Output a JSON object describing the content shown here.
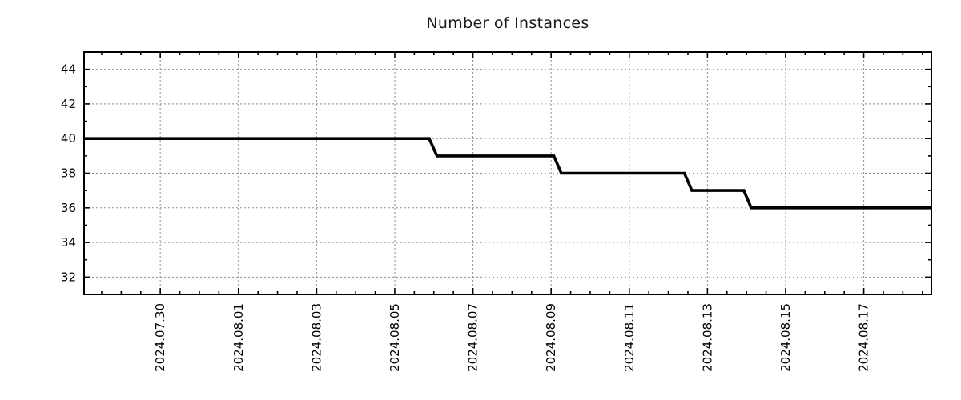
{
  "chart_data": {
    "type": "line",
    "title": "Number of Instances",
    "legend": null,
    "grid": {
      "visible": true,
      "style": "dashed",
      "color": "#8f8f8f"
    },
    "x_axis": {
      "label": "",
      "day0": "2024.07.28",
      "xlim_days": [
        0.05,
        21.73
      ],
      "tick_days": [
        2,
        4,
        6,
        8,
        10,
        12,
        14,
        16,
        18,
        20
      ],
      "tick_labels": [
        "2024.07.30",
        "2024.08.01",
        "2024.08.03",
        "2024.08.05",
        "2024.08.07",
        "2024.08.09",
        "2024.08.11",
        "2024.08.13",
        "2024.08.15",
        "2024.08.17"
      ],
      "minor_tick_interval_days": 0.5,
      "tick_label_rotation_deg": 90
    },
    "y_axis": {
      "label": "",
      "ylim": [
        31,
        45
      ],
      "ticks": [
        32,
        34,
        36,
        38,
        40,
        42,
        44
      ],
      "tick_labels": [
        "32",
        "34",
        "36",
        "38",
        "40",
        "42",
        "44"
      ],
      "minor_tick_interval": 1
    },
    "series": [
      {
        "name": "Number of Instances",
        "color": "#000000",
        "line_width": 3.6,
        "points_day_value": [
          [
            0.05,
            40
          ],
          [
            8.88,
            40
          ],
          [
            9.08,
            39
          ],
          [
            12.07,
            39
          ],
          [
            12.26,
            38
          ],
          [
            15.41,
            38
          ],
          [
            15.6,
            37
          ],
          [
            16.93,
            37
          ],
          [
            17.12,
            36
          ],
          [
            21.73,
            36
          ]
        ],
        "step_summary": [
          {
            "from": "2024.07.28",
            "to": "2024.08.06",
            "value": 40
          },
          {
            "from": "2024.08.06",
            "to": "2024.08.09",
            "value": 39
          },
          {
            "from": "2024.08.09",
            "to": "2024.08.12",
            "value": 38
          },
          {
            "from": "2024.08.12",
            "to": "2024.08.14",
            "value": 37
          },
          {
            "from": "2024.08.14",
            "to": "2024.08.18",
            "value": 36
          }
        ]
      }
    ]
  },
  "colors": {
    "background": "#ffffff",
    "axis": "#000000",
    "grid": "#8f8f8f",
    "line": "#000000",
    "text": "#000000"
  }
}
